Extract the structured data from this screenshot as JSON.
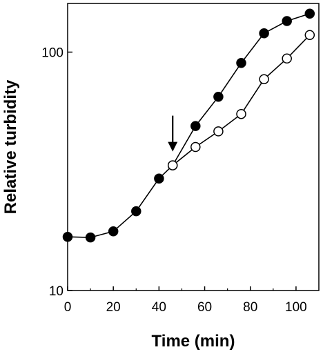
{
  "chart_data": {
    "type": "line",
    "title": "",
    "xlabel": "Time (min)",
    "ylabel": "Relative turbidity",
    "xlim": [
      0,
      110
    ],
    "ylim": [
      10,
      160
    ],
    "yscale": "log",
    "grid": false,
    "x_ticks": [
      0,
      20,
      40,
      60,
      80,
      100
    ],
    "x_tick_labels": [
      "0",
      "20",
      "40",
      "60",
      "80",
      "100"
    ],
    "y_ticks": [
      10,
      100
    ],
    "y_tick_labels": [
      "10",
      "100"
    ],
    "series": [
      {
        "marker": "filled-circle",
        "x": [
          0,
          10,
          20,
          30,
          40,
          46,
          56,
          66,
          76,
          86,
          96,
          106
        ],
        "y": [
          16.8,
          16.7,
          17.7,
          21.5,
          29.5,
          33.5,
          49,
          65,
          90,
          120,
          135,
          145
        ]
      },
      {
        "marker": "open-circle",
        "x": [
          46,
          56,
          66,
          76,
          86,
          96,
          106
        ],
        "y": [
          33.5,
          40,
          46.5,
          55,
          77,
          94,
          118
        ]
      }
    ],
    "annotations": [
      {
        "type": "arrow-down",
        "x": 46,
        "y": 33.5
      }
    ],
    "colors": {
      "line": "#000000",
      "fill": "#000000",
      "open_fill": "#ffffff"
    }
  }
}
